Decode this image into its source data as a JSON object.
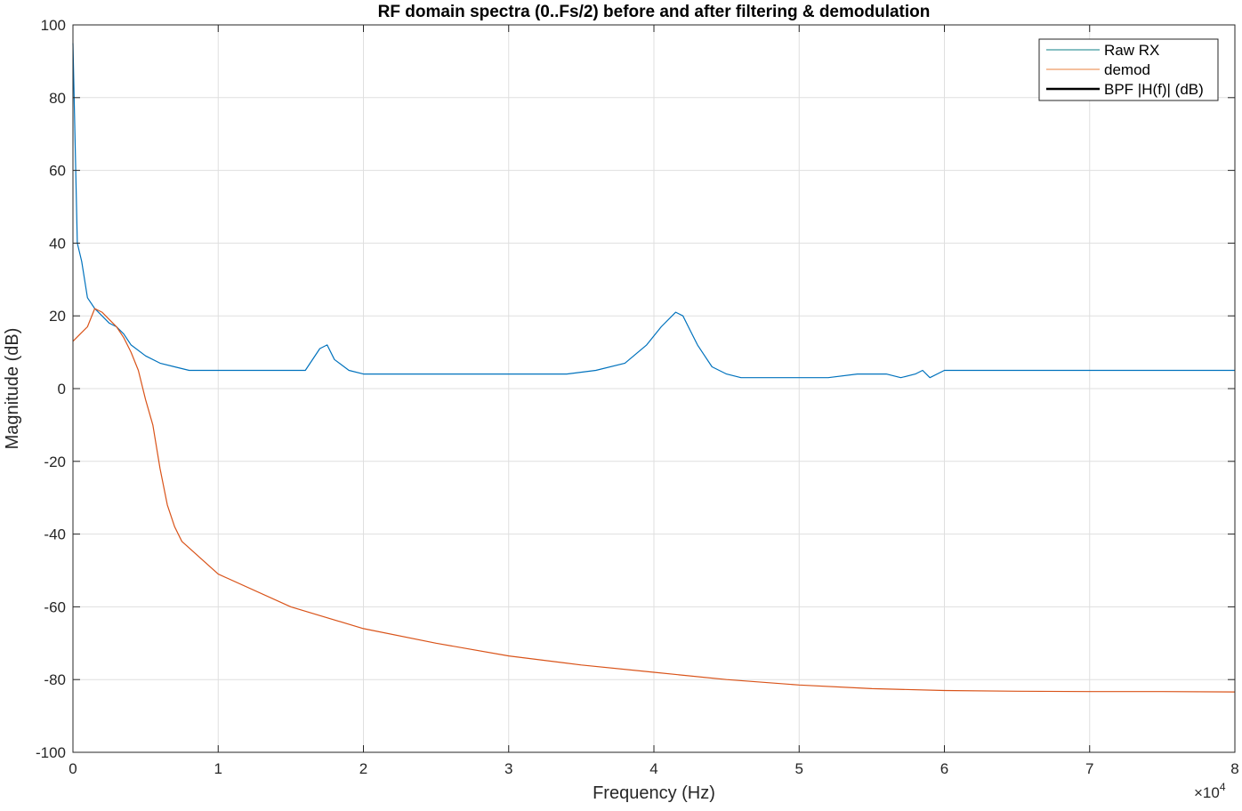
{
  "chart_data": {
    "type": "line",
    "title": "RF domain spectra (0..Fs/2) before and after filtering & demodulation",
    "xlabel": "Frequency (Hz)",
    "ylabel": "Magnitude (dB)",
    "x_exponent_label": "×10",
    "x_exponent_power": "4",
    "xlim": [
      0,
      80000
    ],
    "ylim": [
      -100,
      100
    ],
    "grid": true,
    "legend_position": "top-right",
    "x_ticks": [
      0,
      10000,
      20000,
      30000,
      40000,
      50000,
      60000,
      70000,
      80000
    ],
    "x_tick_labels": [
      "0",
      "1",
      "2",
      "3",
      "4",
      "5",
      "6",
      "7",
      "8"
    ],
    "y_ticks": [
      -100,
      -80,
      -60,
      -40,
      -20,
      0,
      20,
      40,
      60,
      80,
      100
    ],
    "y_tick_labels": [
      "-100",
      "-80",
      "-60",
      "-40",
      "-20",
      "0",
      "20",
      "40",
      "60",
      "80",
      "100"
    ],
    "legend": [
      {
        "label": "Raw RX",
        "color": "#0e7f84",
        "width": 1
      },
      {
        "label": "demod",
        "color": "#e8803e",
        "width": 1
      },
      {
        "label": "BPF |H(f)| (dB)",
        "color": "#000000",
        "width": 2.5
      }
    ],
    "series": [
      {
        "name": "Raw RX",
        "color": "#0072bd",
        "x": [
          0,
          300,
          600,
          1000,
          1500,
          2000,
          2500,
          3000,
          3500,
          4000,
          5000,
          6000,
          7000,
          8000,
          9000,
          10000,
          12000,
          14000,
          16000,
          17000,
          17500,
          18000,
          19000,
          20000,
          22000,
          25000,
          28000,
          30000,
          32000,
          34000,
          36000,
          38000,
          39500,
          40500,
          41500,
          42000,
          42500,
          43000,
          43500,
          44000,
          45000,
          46000,
          47000,
          48000,
          50000,
          52000,
          54000,
          56000,
          57000,
          58000,
          58500,
          59000,
          60000,
          65000,
          70000,
          75000,
          80000
        ],
        "y": [
          95,
          40,
          35,
          25,
          22,
          20,
          18,
          17,
          15,
          12,
          9,
          7,
          6,
          5,
          5,
          5,
          5,
          5,
          5,
          11,
          12,
          8,
          5,
          4,
          4,
          4,
          4,
          4,
          4,
          4,
          5,
          7,
          12,
          17,
          21,
          20,
          16,
          12,
          9,
          6,
          4,
          3,
          3,
          3,
          3,
          3,
          4,
          4,
          3,
          4,
          5,
          3,
          5,
          5,
          5,
          5,
          5
        ]
      },
      {
        "name": "demod",
        "color": "#d95319",
        "x": [
          0,
          500,
          1000,
          1500,
          2000,
          2500,
          3000,
          3500,
          4000,
          4500,
          5000,
          5500,
          6000,
          6500,
          7000,
          7500,
          10000,
          15000,
          20000,
          25000,
          30000,
          35000,
          40000,
          45000,
          50000,
          55000,
          60000,
          65000,
          70000,
          75000,
          80000
        ],
        "y": [
          13,
          15,
          17,
          22,
          21,
          19,
          17,
          14,
          10,
          5,
          -3,
          -10,
          -22,
          -32,
          -38,
          -42,
          -51,
          -60,
          -66,
          -70,
          -73.5,
          -76,
          -78,
          -80,
          -81.5,
          -82.5,
          -83,
          -83.2,
          -83.3,
          -83.3,
          -83.4
        ]
      }
    ]
  }
}
